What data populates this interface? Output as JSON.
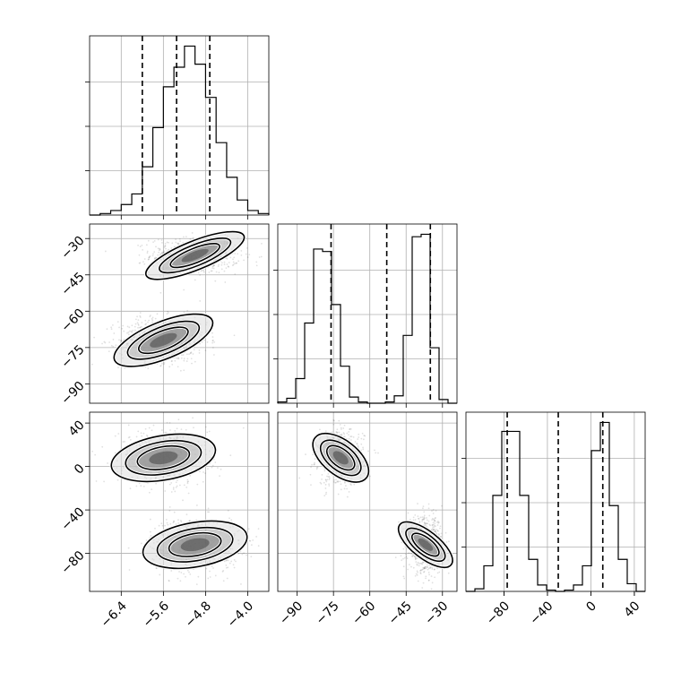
{
  "chart_data": {
    "type": "corner",
    "parameters": [
      {
        "range": [
          -7.0,
          -3.6
        ],
        "ticks": [
          -6.4,
          -5.6,
          -4.8,
          -4.0
        ],
        "tick_labels": [
          "−6.4",
          "−5.6",
          "−4.8",
          "−4.0"
        ]
      },
      {
        "range": [
          -98,
          -24
        ],
        "ticks": [
          -90,
          -75,
          -60,
          -45,
          -30
        ],
        "tick_labels": [
          "−90",
          "−75",
          "−60",
          "−45",
          "−30"
        ]
      },
      {
        "range": [
          -115,
          50
        ],
        "ticks": [
          -80,
          -40,
          0,
          40
        ],
        "tick_labels": [
          "−80",
          "−40",
          "0",
          "40"
        ]
      }
    ],
    "histograms": [
      {
        "bin_edges": [
          -7.0,
          -6.8,
          -6.6,
          -6.4,
          -6.2,
          -6.0,
          -5.8,
          -5.6,
          -5.4,
          -5.2,
          -5.0,
          -4.8,
          -4.6,
          -4.4,
          -4.2,
          -4.0,
          -3.8,
          -3.6
        ],
        "counts": [
          0,
          1,
          3,
          7,
          14,
          32,
          58,
          85,
          98,
          112,
          100,
          78,
          48,
          25,
          10,
          3,
          1
        ],
        "quantiles": [
          -6.0,
          -5.35,
          -4.72
        ]
      },
      {
        "bin_edges": [
          -98,
          -94.3,
          -90.6,
          -86.9,
          -83.2,
          -79.5,
          -75.8,
          -72.1,
          -68.4,
          -64.7,
          -61,
          -57.3,
          -53.6,
          -49.9,
          -46.2,
          -42.5,
          -38.8,
          -35.1,
          -31.4,
          -27.7,
          -24
        ],
        "counts": [
          1,
          4,
          20,
          65,
          125,
          123,
          80,
          30,
          5,
          1,
          0,
          0,
          1,
          6,
          55,
          135,
          137,
          45,
          3,
          0
        ],
        "quantiles": [
          -76.0,
          -53.0,
          -35.0
        ]
      },
      {
        "bin_edges": [
          -115,
          -106.75,
          -98.5,
          -90.25,
          -82,
          -73.75,
          -65.5,
          -57.25,
          -49,
          -40.75,
          -32.5,
          -24.25,
          -16,
          -7.75,
          0.5,
          8.75,
          17,
          25.25,
          33.5,
          41.75,
          50
        ],
        "counts": [
          0,
          2,
          20,
          75,
          125,
          125,
          75,
          25,
          5,
          1,
          0,
          1,
          5,
          20,
          110,
          132,
          67,
          25,
          6,
          0
        ],
        "quantiles": [
          -77.0,
          -30.0,
          11.0
        ]
      }
    ],
    "clusters": [
      {
        "weight": 0.5,
        "mean": [
          -5.0,
          -37.0,
          -72.0
        ],
        "sd": [
          0.4,
          3.5,
          12.0
        ]
      },
      {
        "weight": 0.5,
        "mean": [
          -5.6,
          -72.0,
          8.0
        ],
        "sd": [
          0.4,
          4.5,
          12.0
        ]
      }
    ]
  }
}
